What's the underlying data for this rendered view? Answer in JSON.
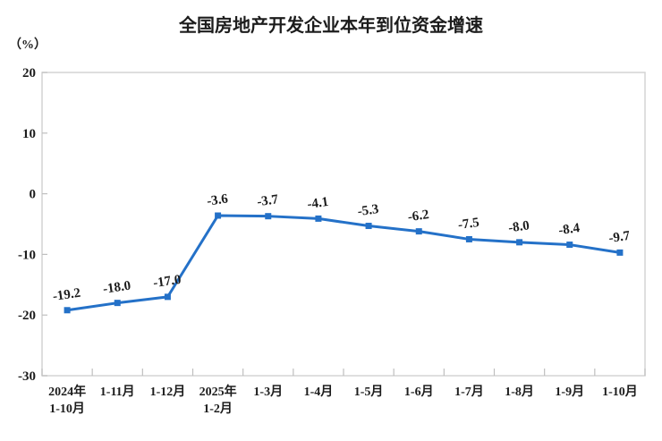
{
  "chart_data": {
    "type": "line",
    "title": "全国房地产开发企业本年到位资金增速",
    "unit_label": "（%）",
    "categories": [
      [
        "2024年",
        "1-10月"
      ],
      [
        "1-11月"
      ],
      [
        "1-12月"
      ],
      [
        "2025年",
        "1-2月"
      ],
      [
        "1-3月"
      ],
      [
        "1-4月"
      ],
      [
        "1-5月"
      ],
      [
        "1-6月"
      ],
      [
        "1-7月"
      ],
      [
        "1-8月"
      ],
      [
        "1-9月"
      ],
      [
        "1-10月"
      ]
    ],
    "values": [
      -19.2,
      -18.0,
      -17.0,
      -3.6,
      -3.7,
      -4.1,
      -5.3,
      -6.2,
      -7.5,
      -8.0,
      -8.4,
      -9.7
    ],
    "data_labels": [
      "-19.2",
      "-18.0",
      "-17.0",
      "-3.6",
      "-3.7",
      "-4.1",
      "-5.3",
      "-6.2",
      "-7.5",
      "-8.0",
      "-8.4",
      "-9.7"
    ],
    "y_ticks": [
      20,
      10,
      0,
      -10,
      -20,
      -30
    ],
    "ylim": [
      -30,
      20
    ],
    "grid": false,
    "legend": "none",
    "line_color": "#2471c8",
    "marker": "square",
    "border_color": "#d4d4d4",
    "tick_color": "#bfbfbf",
    "text_color": "#1c1c1c"
  }
}
